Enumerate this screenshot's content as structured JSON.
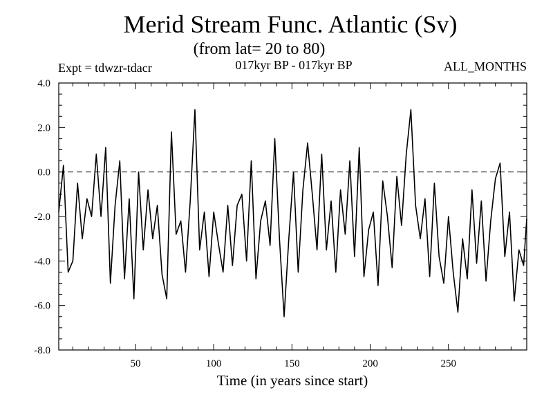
{
  "chart_data": {
    "type": "line",
    "title": "Merid Stream Func. Atlantic (Sv)",
    "subtitle": "(from lat= 20 to 80)",
    "header_left": "Expt = tdwzr-tdacr",
    "header_center": "017kyr BP - 017kyr BP",
    "header_right": "ALL_MONTHS",
    "xlabel": "Time (in years since start)",
    "ylabel": "",
    "xlim": [
      1,
      300
    ],
    "ylim": [
      -8,
      4
    ],
    "xticks": [
      50,
      100,
      150,
      200,
      250
    ],
    "xtick_labels": [
      "50",
      "100",
      "150",
      "200",
      "250"
    ],
    "yticks": [
      4,
      2,
      0,
      -2,
      -4,
      -6,
      -8
    ],
    "ytick_labels": [
      "4.0",
      "2.0",
      "0.0",
      "-2.0",
      "-4.0",
      "-6.0",
      "-8.0"
    ],
    "reference_line": {
      "y": 0,
      "style": "dashed"
    },
    "grid": false,
    "series": [
      {
        "x": [
          1,
          4,
          7,
          10,
          13,
          16,
          19,
          22,
          25,
          28,
          31,
          34,
          37,
          40,
          43,
          46,
          49,
          52,
          55,
          58,
          61,
          64,
          67,
          70,
          73,
          76,
          79,
          82,
          85,
          88,
          91,
          94,
          97,
          100,
          103,
          106,
          109,
          112,
          115,
          118,
          121,
          124,
          127,
          130,
          133,
          136,
          139,
          142,
          145,
          148,
          151,
          154,
          157,
          160,
          163,
          166,
          169,
          172,
          175,
          178,
          181,
          184,
          187,
          190,
          193,
          196,
          199,
          202,
          205,
          208,
          211,
          214,
          217,
          220,
          223,
          226,
          229,
          232,
          235,
          238,
          241,
          244,
          247,
          250,
          253,
          256,
          259,
          262,
          265,
          268,
          271,
          274,
          277,
          280,
          283,
          286,
          289,
          292,
          295,
          298,
          300
        ],
        "values": [
          -1.8,
          0.3,
          -4.5,
          -4.0,
          -0.5,
          -3.0,
          -1.2,
          -2.0,
          0.8,
          -2.0,
          1.1,
          -5.0,
          -1.5,
          0.5,
          -4.8,
          -1.2,
          -5.7,
          0.0,
          -3.5,
          -0.8,
          -3.0,
          -1.5,
          -4.6,
          -5.7,
          1.8,
          -2.8,
          -2.2,
          -4.5,
          -1.3,
          2.8,
          -3.5,
          -1.8,
          -4.7,
          -1.8,
          -3.2,
          -4.5,
          -1.5,
          -4.2,
          -1.5,
          -1.0,
          -4.0,
          0.5,
          -4.8,
          -2.2,
          -1.3,
          -3.3,
          1.5,
          -3.0,
          -6.5,
          -3.0,
          0.0,
          -4.5,
          -0.8,
          1.3,
          -1.0,
          -3.5,
          0.8,
          -3.5,
          -1.3,
          -4.5,
          -0.8,
          -2.8,
          0.5,
          -3.8,
          1.1,
          -4.7,
          -2.6,
          -1.8,
          -5.1,
          -0.4,
          -2.0,
          -4.3,
          -0.2,
          -2.4,
          0.8,
          2.8,
          -1.5,
          -3.0,
          -1.2,
          -4.7,
          -0.5,
          -3.8,
          -5.0,
          -2.0,
          -4.5,
          -6.3,
          -3.0,
          -4.8,
          -0.8,
          -4.1,
          -1.3,
          -4.9,
          -2.2,
          -0.3,
          0.4,
          -3.8,
          -1.8,
          -5.8,
          -3.5,
          -4.2,
          -2.1
        ]
      }
    ]
  }
}
